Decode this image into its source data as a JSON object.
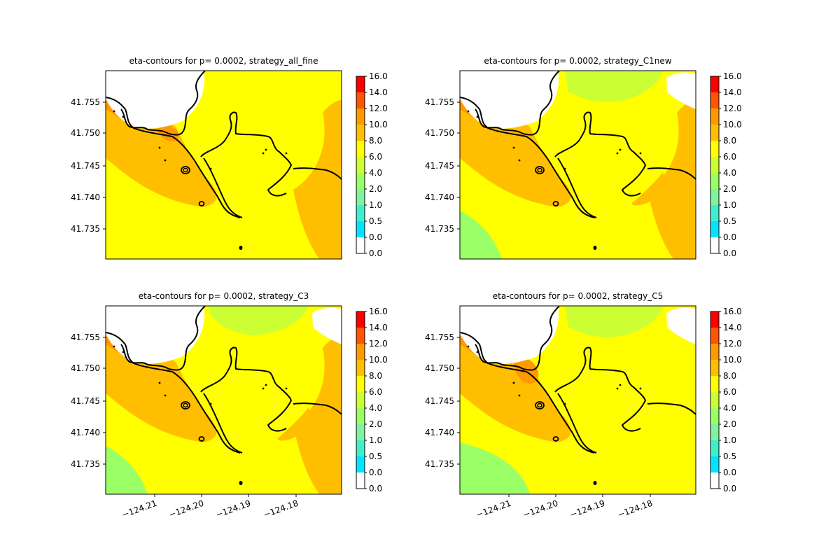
{
  "chart_data": [
    {
      "type": "heatmap",
      "title": "eta-contours for p= 0.0002, strategy_all_fine",
      "y_ticks": [
        "41.755",
        "41.750",
        "41.745",
        "41.740",
        "41.735"
      ],
      "x_ticks": [],
      "colorbar": {
        "ticks": [
          "0.0",
          "0.0",
          "0.5",
          "1.0",
          "2.0",
          "4.0",
          "6.0",
          "8.0",
          "10.0",
          "12.0",
          "14.0",
          "16.0"
        ]
      },
      "variant": "all_fine"
    },
    {
      "type": "heatmap",
      "title": "eta-contours for p= 0.0002, strategy_C1new",
      "y_ticks": [
        "41.755",
        "41.750",
        "41.745",
        "41.740",
        "41.735"
      ],
      "x_ticks": [],
      "colorbar": {
        "ticks": [
          "0.0",
          "0.0",
          "0.5",
          "1.0",
          "2.0",
          "4.0",
          "6.0",
          "8.0",
          "10.0",
          "12.0",
          "14.0",
          "16.0"
        ]
      },
      "variant": "C1new"
    },
    {
      "type": "heatmap",
      "title": "eta-contours for p= 0.0002, strategy_C3",
      "y_ticks": [
        "41.755",
        "41.750",
        "41.745",
        "41.740",
        "41.735"
      ],
      "x_ticks": [
        "−124.21",
        "−124.20",
        "−124.19",
        "−124.18"
      ],
      "colorbar": {
        "ticks": [
          "0.0",
          "0.0",
          "0.5",
          "1.0",
          "2.0",
          "4.0",
          "6.0",
          "8.0",
          "10.0",
          "12.0",
          "14.0",
          "16.0"
        ]
      },
      "variant": "C3"
    },
    {
      "type": "heatmap",
      "title": "eta-contours for p= 0.0002, strategy_C5",
      "y_ticks": [
        "41.755",
        "41.750",
        "41.745",
        "41.740",
        "41.735"
      ],
      "x_ticks": [
        "−124.21",
        "−124.20",
        "−124.19",
        "−124.18"
      ],
      "colorbar": {
        "ticks": [
          "0.0",
          "0.0",
          "0.5",
          "1.0",
          "2.0",
          "4.0",
          "6.0",
          "8.0",
          "10.0",
          "12.0",
          "14.0",
          "16.0"
        ]
      },
      "variant": "C5"
    }
  ],
  "colors": {
    "level_colors": [
      "#ffffff",
      "#00e5ff",
      "#40eecc",
      "#80f2a0",
      "#9bff66",
      "#ccff33",
      "#ffff00",
      "#ffbf00",
      "#ff9900",
      "#ff5500",
      "#ff0000"
    ],
    "coastline": "#000000"
  }
}
